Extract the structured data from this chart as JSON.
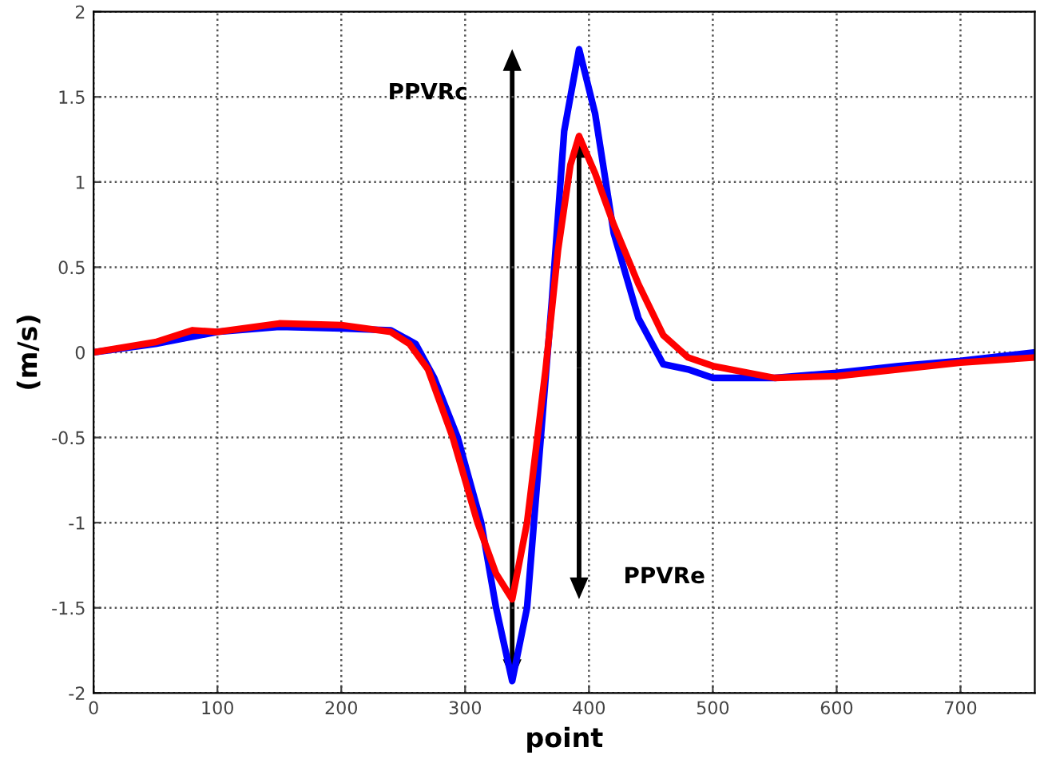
{
  "chart_data": {
    "type": "line",
    "xlabel": "point",
    "ylabel": "(m/s)",
    "xlim": [
      0,
      760
    ],
    "xticks": [
      0,
      100,
      200,
      300,
      400,
      500,
      600,
      700
    ],
    "ylim": [
      -2,
      2
    ],
    "yticks": [
      -2,
      -1.5,
      -1,
      -0.5,
      0,
      0.5,
      1,
      1.5,
      2
    ],
    "grid": true,
    "line_style": "solid",
    "series": [
      {
        "color": "#0000ff",
        "x": [
          0,
          50,
          100,
          150,
          200,
          240,
          260,
          275,
          294,
          313,
          325,
          338,
          350,
          360,
          370,
          380,
          392,
          405,
          420,
          440,
          460,
          480,
          500,
          550,
          600,
          650,
          700,
          760
        ],
        "values": [
          0.0,
          0.05,
          0.12,
          0.15,
          0.14,
          0.13,
          0.05,
          -0.15,
          -0.5,
          -1.0,
          -1.5,
          -1.93,
          -1.5,
          -0.6,
          0.3,
          1.3,
          1.78,
          1.4,
          0.7,
          0.2,
          -0.07,
          -0.1,
          -0.15,
          -0.15,
          -0.12,
          -0.08,
          -0.05,
          0.0
        ]
      },
      {
        "color": "#ff0000",
        "x": [
          0,
          50,
          80,
          100,
          150,
          200,
          240,
          255,
          270,
          290,
          310,
          325,
          338,
          350,
          365,
          375,
          385,
          392,
          405,
          420,
          440,
          460,
          480,
          500,
          550,
          600,
          650,
          700,
          760
        ],
        "values": [
          0.0,
          0.06,
          0.13,
          0.12,
          0.17,
          0.16,
          0.12,
          0.05,
          -0.1,
          -0.5,
          -1.0,
          -1.3,
          -1.45,
          -1.0,
          -0.1,
          0.6,
          1.1,
          1.27,
          1.05,
          0.75,
          0.4,
          0.1,
          -0.03,
          -0.08,
          -0.15,
          -0.14,
          -0.1,
          -0.06,
          -0.03
        ]
      }
    ],
    "annotations": [
      "PPVRc",
      "PPVRe"
    ]
  }
}
